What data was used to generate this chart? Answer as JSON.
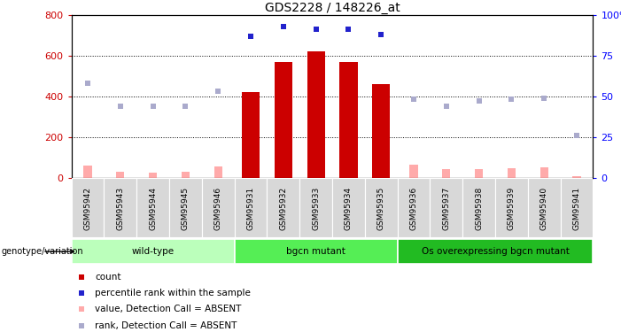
{
  "title": "GDS2228 / 148226_at",
  "samples": [
    "GSM95942",
    "GSM95943",
    "GSM95944",
    "GSM95945",
    "GSM95946",
    "GSM95931",
    "GSM95932",
    "GSM95933",
    "GSM95934",
    "GSM95935",
    "GSM95936",
    "GSM95937",
    "GSM95938",
    "GSM95939",
    "GSM95940",
    "GSM95941"
  ],
  "count_values": [
    0,
    0,
    0,
    0,
    0,
    420,
    570,
    620,
    570,
    460,
    0,
    0,
    0,
    0,
    0,
    0
  ],
  "count_absent": [
    60,
    30,
    25,
    30,
    55,
    0,
    0,
    0,
    0,
    0,
    65,
    40,
    40,
    45,
    50,
    5
  ],
  "percentile_values": [
    0,
    0,
    0,
    0,
    0,
    87,
    93,
    91,
    91,
    88,
    0,
    0,
    0,
    0,
    0,
    0
  ],
  "percentile_absent": [
    58,
    44,
    44,
    44,
    53,
    0,
    0,
    0,
    0,
    0,
    48,
    44,
    47,
    48,
    49,
    26
  ],
  "groups": [
    {
      "label": "wild-type",
      "start": 0,
      "end": 5,
      "color": "#bbffbb"
    },
    {
      "label": "bgcn mutant",
      "start": 5,
      "end": 10,
      "color": "#55ee55"
    },
    {
      "label": "Os overexpressing bgcn mutant",
      "start": 10,
      "end": 16,
      "color": "#22bb22"
    }
  ],
  "ylim_left": [
    0,
    800
  ],
  "ylim_right": [
    0,
    100
  ],
  "yticks_left": [
    0,
    200,
    400,
    600,
    800
  ],
  "yticks_right": [
    0,
    25,
    50,
    75,
    100
  ],
  "grid_values": [
    200,
    400,
    600
  ],
  "bar_color": "#cc0000",
  "absent_count_color": "#ffaaaa",
  "blue_marker_color": "#2222cc",
  "absent_rank_color": "#aaaacc",
  "cell_bg": "#d8d8d8",
  "plot_bg": "#ffffff"
}
